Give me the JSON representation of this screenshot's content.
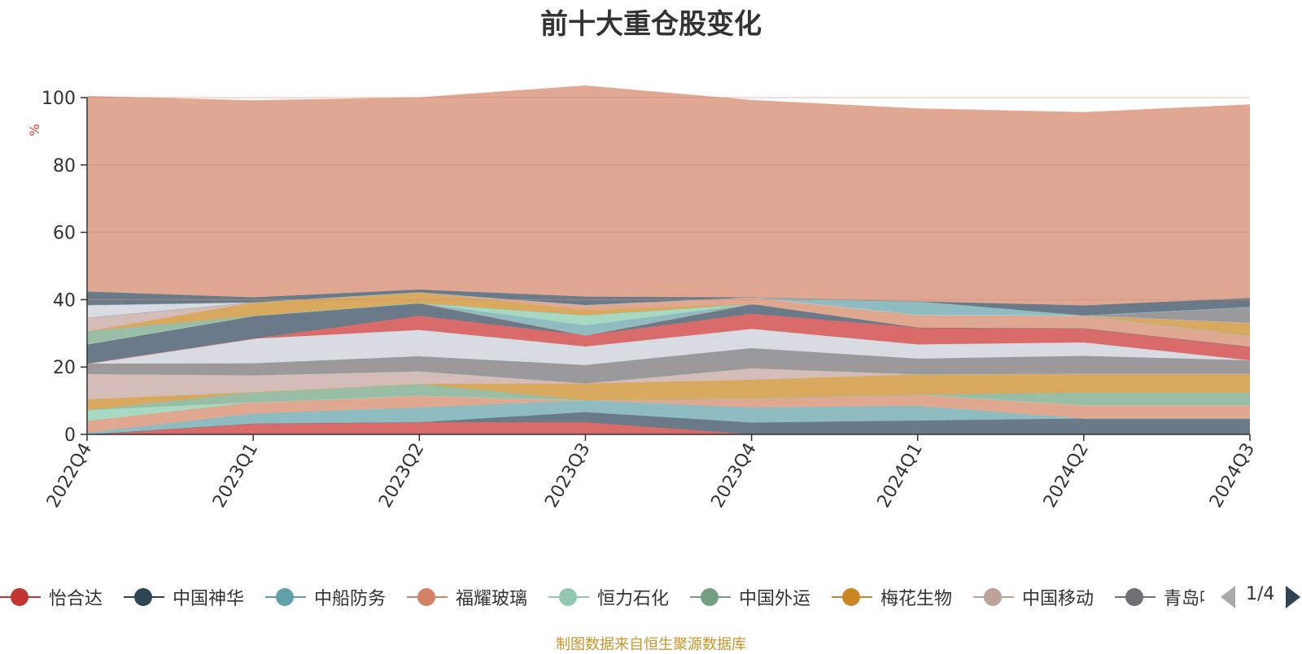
{
  "chart_data": {
    "type": "area",
    "title": "前十大重仓股变化",
    "ylabel": "%",
    "ylim": [
      0,
      100
    ],
    "yticks": [
      0,
      20,
      40,
      60,
      80,
      100
    ],
    "categories": [
      "2022Q4",
      "2023Q1",
      "2023Q2",
      "2023Q3",
      "2023Q4",
      "2024Q1",
      "2024Q2",
      "2024Q3"
    ],
    "stacked": true,
    "grid": true,
    "legend_position": "bottom",
    "series": [
      {
        "color": "#d96b6b",
        "values": [
          0.0,
          3.2,
          3.6,
          3.6,
          0.0,
          0.0,
          0.0,
          0.0
        ]
      },
      {
        "color": "#6b7a88",
        "values": [
          0.0,
          0.0,
          0.0,
          3.0,
          3.5,
          4.1,
          4.7,
          4.7
        ]
      },
      {
        "color": "#8fbcc1",
        "values": [
          0.5,
          3.0,
          4.4,
          3.5,
          4.5,
          4.4,
          0.0,
          0.0
        ]
      },
      {
        "color": "#e1a891",
        "values": [
          3.5,
          3.3,
          3.5,
          0.0,
          2.7,
          3.3,
          4.0,
          4.0
        ]
      },
      {
        "color": "#a9d8c3",
        "values": [
          3.2,
          0.0,
          0.0,
          0.0,
          0.0,
          0.0,
          0.0,
          0.0
        ]
      },
      {
        "color": "#9abda6",
        "values": [
          0.0,
          3.0,
          3.5,
          0.0,
          0.0,
          0.0,
          3.7,
          3.7
        ]
      },
      {
        "color": "#d8a95e",
        "values": [
          3.2,
          0.0,
          0.0,
          5.0,
          5.5,
          6.0,
          5.6,
          5.6
        ]
      },
      {
        "color": "#d4bdb8",
        "values": [
          7.5,
          5.0,
          3.7,
          0.0,
          3.4,
          0.0,
          0.0,
          0.0
        ]
      },
      {
        "color": "#9a9a9c",
        "values": [
          3.1,
          3.6,
          4.5,
          5.5,
          6.0,
          4.7,
          5.3,
          4.0
        ]
      },
      {
        "color": "#d8dce2",
        "values": [
          0.0,
          7.3,
          7.8,
          5.5,
          5.7,
          4.2,
          4.0,
          0.0
        ]
      },
      {
        "color": "#d96b6b",
        "values": [
          0.0,
          0.0,
          4.2,
          3.3,
          4.5,
          5.0,
          4.2,
          4.0
        ]
      },
      {
        "color": "#6b7a88",
        "values": [
          5.8,
          6.8,
          3.8,
          0.0,
          2.9,
          0.0,
          0.0,
          0.0
        ]
      },
      {
        "color": "#e1a891",
        "values": [
          0.0,
          0.0,
          0.0,
          0.0,
          0.0,
          3.8,
          3.8,
          3.3
        ]
      },
      {
        "color": "#8fbcc1",
        "values": [
          0.0,
          0.0,
          0.0,
          3.0,
          0.0,
          0.0,
          0.0,
          0.0
        ]
      },
      {
        "color": "#a9d8c3",
        "values": [
          0.0,
          0.0,
          0.0,
          3.0,
          0.0,
          0.0,
          0.0,
          0.0
        ]
      },
      {
        "color": "#9abda6",
        "values": [
          3.8,
          0.0,
          0.0,
          0.0,
          0.0,
          0.0,
          0.0,
          0.0
        ]
      },
      {
        "color": "#d8a95e",
        "values": [
          0.0,
          4.0,
          3.2,
          1.5,
          0.0,
          0.0,
          0.0,
          3.8
        ]
      },
      {
        "color": "#e1a891",
        "values": [
          0.0,
          0.0,
          0.0,
          1.5,
          2.0,
          0.0,
          0.0,
          0.0
        ]
      },
      {
        "color": "#d4bdb8",
        "values": [
          4.0,
          0.0,
          0.0,
          0.0,
          0.0,
          0.0,
          0.0,
          0.0
        ]
      },
      {
        "color": "#9a9a9c",
        "values": [
          0.0,
          0.0,
          0.0,
          0.0,
          0.0,
          0.0,
          0.0,
          4.7
        ]
      },
      {
        "color": "#d8dce2",
        "values": [
          3.8,
          0.0,
          0.0,
          0.0,
          0.0,
          0.0,
          0.0,
          0.0
        ]
      },
      {
        "color": "#8fbcc1",
        "values": [
          0.0,
          0.0,
          0.0,
          0.0,
          0.0,
          4.0,
          0.0,
          0.0
        ]
      },
      {
        "color": "#6b7a88",
        "values": [
          4.0,
          1.5,
          0.8,
          2.5,
          0.0,
          0.0,
          3.0,
          2.7
        ]
      },
      {
        "color": "#e0a893",
        "values": [
          58.0,
          58.4,
          57.0,
          62.6,
          58.5,
          57.2,
          57.3,
          57.4
        ]
      }
    ]
  },
  "legend": {
    "items": [
      {
        "label": "怡合达",
        "color": "#c23531"
      },
      {
        "label": "中国神华",
        "color": "#2f4554"
      },
      {
        "label": "中船防务",
        "color": "#61a0a8"
      },
      {
        "label": "福耀玻璃",
        "color": "#d48265"
      },
      {
        "label": "恒力石化",
        "color": "#91c7ae"
      },
      {
        "label": "中国外运",
        "color": "#749f83"
      },
      {
        "label": "梅花生物",
        "color": "#ca8622"
      },
      {
        "label": "中国移动",
        "color": "#bda29a"
      },
      {
        "label": "青岛啤酒",
        "color": "#6e7074"
      }
    ],
    "page_indicator": "1/4"
  },
  "source_note": "制图数据来自恒生聚源数据库"
}
